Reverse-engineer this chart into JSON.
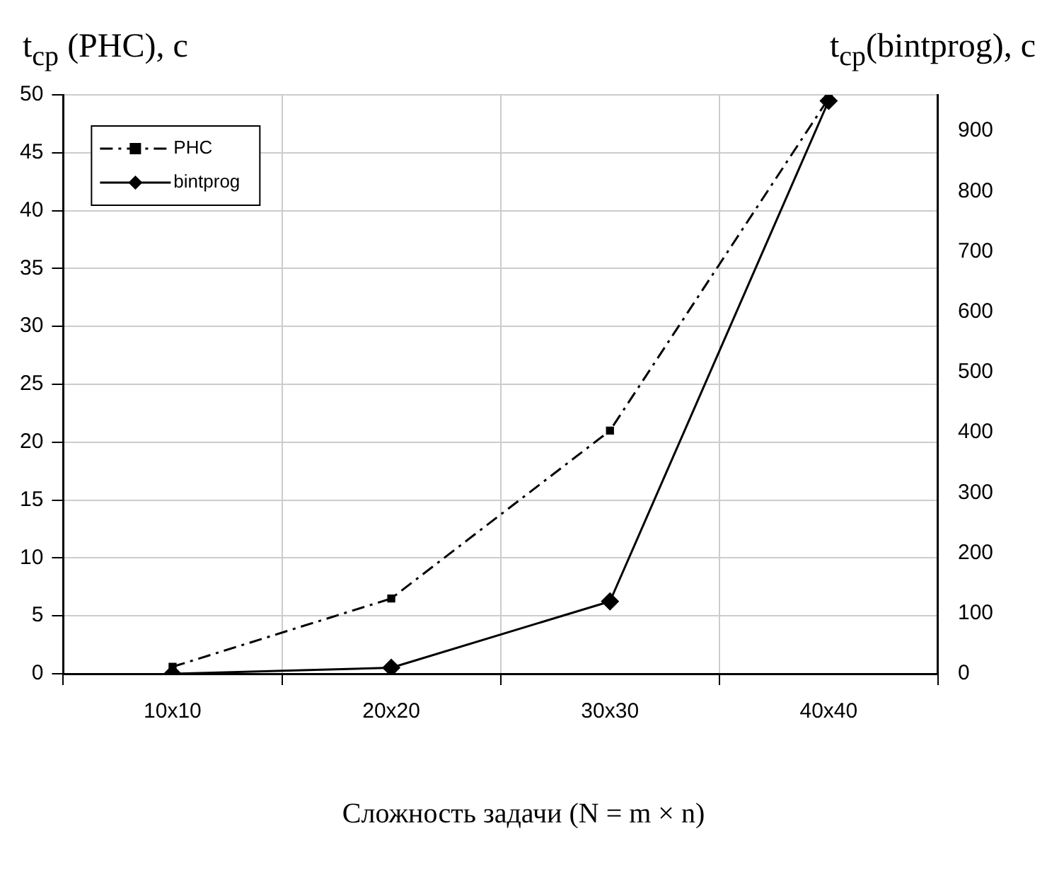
{
  "chart_data": {
    "type": "line",
    "ylabel": "t$_{cp}$ (PHC), c",
    "y2label": "t$_{cp}$(bintprog), c",
    "xlabel": "Сложность задачи (N = m × n)",
    "categories": [
      "10x10",
      "20x20",
      "30x30",
      "40x40"
    ],
    "series": [
      {
        "name": "PHC",
        "color": "#000000",
        "values": [
          0.6,
          6.5,
          21,
          49.7
        ],
        "marker": "square",
        "line_style": "dashed"
      },
      {
        "name": "bintprog",
        "color": "#000000",
        "values": [
          0,
          10,
          120,
          950
        ],
        "marker": "diamond",
        "line_style": "solid",
        "axis": "y2"
      }
    ],
    "ylim": [
      0,
      50
    ],
    "yticks": [
      0,
      5,
      10,
      15,
      20,
      25,
      30,
      35,
      40,
      45,
      50
    ],
    "y2lim": [
      0,
      960
    ],
    "y2ticks": [
      0,
      100,
      200,
      300,
      400,
      500,
      600,
      700,
      800,
      900
    ],
    "grid": true,
    "legend": "top left"
  }
}
